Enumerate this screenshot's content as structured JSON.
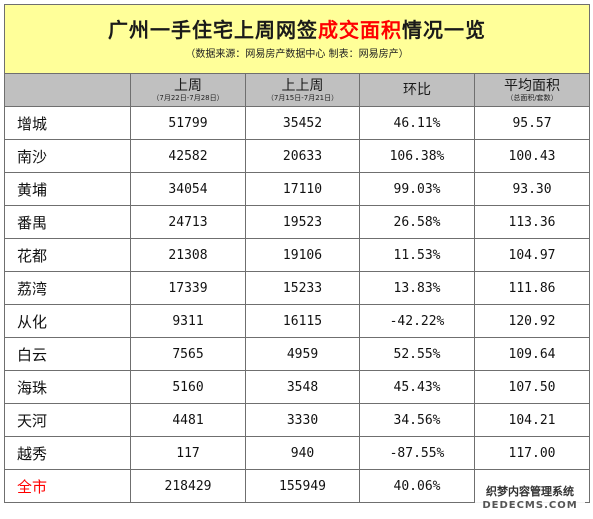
{
  "title": {
    "part1": "广州一手住宅上周网签",
    "highlight": "成交面积",
    "part2": "情况一览"
  },
  "subtitle": "（数据来源：网易房产数据中心 制表：网易房产）",
  "columns": [
    {
      "label": "",
      "sub": ""
    },
    {
      "label": "上周",
      "sub": "（7月22日-7月28日）"
    },
    {
      "label": "上上周",
      "sub": "（7月15日-7月21日）"
    },
    {
      "label": "环比",
      "sub": ""
    },
    {
      "label": "平均面积",
      "sub": "（总面积/套数）"
    }
  ],
  "rows": [
    {
      "name": "增城",
      "last_week": "51799",
      "prev_week": "35452",
      "change": "46.11%",
      "avg_area": "95.57"
    },
    {
      "name": "南沙",
      "last_week": "42582",
      "prev_week": "20633",
      "change": "106.38%",
      "avg_area": "100.43"
    },
    {
      "name": "黄埔",
      "last_week": "34054",
      "prev_week": "17110",
      "change": "99.03%",
      "avg_area": "93.30"
    },
    {
      "name": "番禺",
      "last_week": "24713",
      "prev_week": "19523",
      "change": "26.58%",
      "avg_area": "113.36"
    },
    {
      "name": "花都",
      "last_week": "21308",
      "prev_week": "19106",
      "change": "11.53%",
      "avg_area": "104.97"
    },
    {
      "name": "荔湾",
      "last_week": "17339",
      "prev_week": "15233",
      "change": "13.83%",
      "avg_area": "111.86"
    },
    {
      "name": "从化",
      "last_week": "9311",
      "prev_week": "16115",
      "change": "-42.22%",
      "avg_area": "120.92"
    },
    {
      "name": "白云",
      "last_week": "7565",
      "prev_week": "4959",
      "change": "52.55%",
      "avg_area": "109.64"
    },
    {
      "name": "海珠",
      "last_week": "5160",
      "prev_week": "3548",
      "change": "45.43%",
      "avg_area": "107.50"
    },
    {
      "name": "天河",
      "last_week": "4481",
      "prev_week": "3330",
      "change": "34.56%",
      "avg_area": "104.21"
    },
    {
      "name": "越秀",
      "last_week": "117",
      "prev_week": "940",
      "change": "-87.55%",
      "avg_area": "117.00"
    }
  ],
  "total": {
    "name": "全市",
    "last_week": "218429",
    "prev_week": "155949",
    "change": "40.06%",
    "avg_area": ""
  },
  "watermark": {
    "line1": "织梦内容管理系统",
    "line2": "DEDECMS.COM"
  },
  "colors": {
    "title_bg": "#ffff99",
    "header_bg": "#c0c0c0",
    "highlight": "#ff0000",
    "border": "#6f6f6f"
  }
}
